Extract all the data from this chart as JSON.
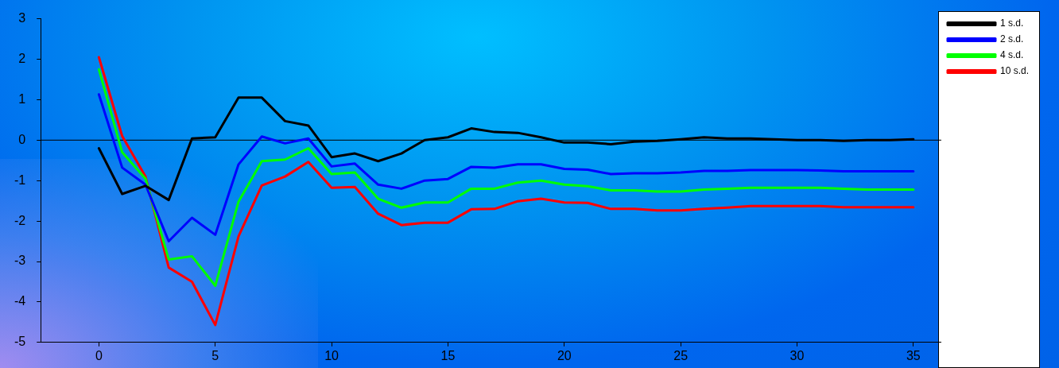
{
  "chart_data": {
    "type": "line",
    "x": [
      0,
      1,
      2,
      3,
      4,
      5,
      6,
      7,
      8,
      9,
      10,
      11,
      12,
      13,
      14,
      15,
      16,
      17,
      18,
      19,
      20,
      21,
      22,
      23,
      24,
      25,
      26,
      27,
      28,
      29,
      30,
      31,
      32,
      33,
      34,
      35
    ],
    "series": [
      {
        "name": "1 s.d.",
        "color": "#000000",
        "values": [
          -0.2,
          -1.33,
          -1.13,
          -1.48,
          0.04,
          0.07,
          1.05,
          1.05,
          0.47,
          0.36,
          -0.42,
          -0.33,
          -0.52,
          -0.33,
          0.0,
          0.07,
          0.29,
          0.2,
          0.18,
          0.07,
          -0.06,
          -0.06,
          -0.1,
          -0.04,
          -0.02,
          0.02,
          0.07,
          0.04,
          0.04,
          0.02,
          0.0,
          0.0,
          -0.02,
          0.0,
          0.0,
          0.02
        ]
      },
      {
        "name": "2 s.d.",
        "color": "#0000ff",
        "values": [
          1.13,
          -0.68,
          -1.1,
          -2.5,
          -1.92,
          -2.34,
          -0.6,
          0.09,
          -0.08,
          0.04,
          -0.65,
          -0.58,
          -1.1,
          -1.2,
          -1.0,
          -0.96,
          -0.66,
          -0.68,
          -0.6,
          -0.6,
          -0.71,
          -0.73,
          -0.84,
          -0.82,
          -0.82,
          -0.8,
          -0.76,
          -0.76,
          -0.74,
          -0.74,
          -0.74,
          -0.75,
          -0.77,
          -0.77,
          -0.77,
          -0.77
        ]
      },
      {
        "name": "4 s.d.",
        "color": "#00ff00",
        "values": [
          1.75,
          -0.3,
          -0.95,
          -2.95,
          -2.87,
          -3.6,
          -1.52,
          -0.52,
          -0.48,
          -0.2,
          -0.84,
          -0.8,
          -1.45,
          -1.67,
          -1.54,
          -1.54,
          -1.2,
          -1.2,
          -1.05,
          -1.0,
          -1.1,
          -1.14,
          -1.24,
          -1.24,
          -1.27,
          -1.27,
          -1.22,
          -1.2,
          -1.18,
          -1.18,
          -1.18,
          -1.18,
          -1.2,
          -1.22,
          -1.22,
          -1.22
        ]
      },
      {
        "name": "10 s.d.",
        "color": "#ff0000",
        "values": [
          2.05,
          0.1,
          -0.9,
          -3.15,
          -3.5,
          -4.57,
          -2.38,
          -1.12,
          -0.9,
          -0.54,
          -1.18,
          -1.16,
          -1.82,
          -2.1,
          -2.04,
          -2.04,
          -1.71,
          -1.7,
          -1.51,
          -1.45,
          -1.54,
          -1.55,
          -1.7,
          -1.7,
          -1.74,
          -1.74,
          -1.7,
          -1.67,
          -1.63,
          -1.63,
          -1.63,
          -1.63,
          -1.66,
          -1.66,
          -1.66,
          -1.66
        ]
      }
    ],
    "xlim": [
      -2.5,
      36.2
    ],
    "xticks": [
      0,
      5,
      10,
      15,
      20,
      25,
      30,
      35
    ],
    "ylim": [
      -5,
      3
    ],
    "yticks": [
      -5,
      -4,
      -3,
      -2,
      -1,
      0,
      1,
      2,
      3
    ],
    "ref_lines": [
      {
        "axis": "y",
        "value": 0,
        "color": "#000000"
      }
    ],
    "grid": false,
    "legend": "top right",
    "marker": "none",
    "line_style": "solid"
  }
}
